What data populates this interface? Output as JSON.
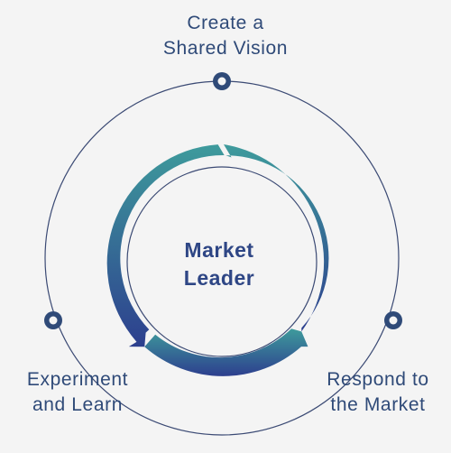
{
  "center": {
    "line1": "Market",
    "line2": "Leader"
  },
  "nodes": [
    {
      "line1": "Create a",
      "line2": "Shared Vision"
    },
    {
      "line1": "Experiment",
      "line2": "and Learn"
    },
    {
      "line1": "Respond to",
      "line2": "the Market"
    }
  ],
  "colors": {
    "background": "#f4f4f4",
    "ring_gradient_top": "#3e9b9c",
    "ring_gradient_bottom": "#2d3f8e",
    "text": "#2f4a78",
    "outer_circle": "#3b4a74"
  }
}
